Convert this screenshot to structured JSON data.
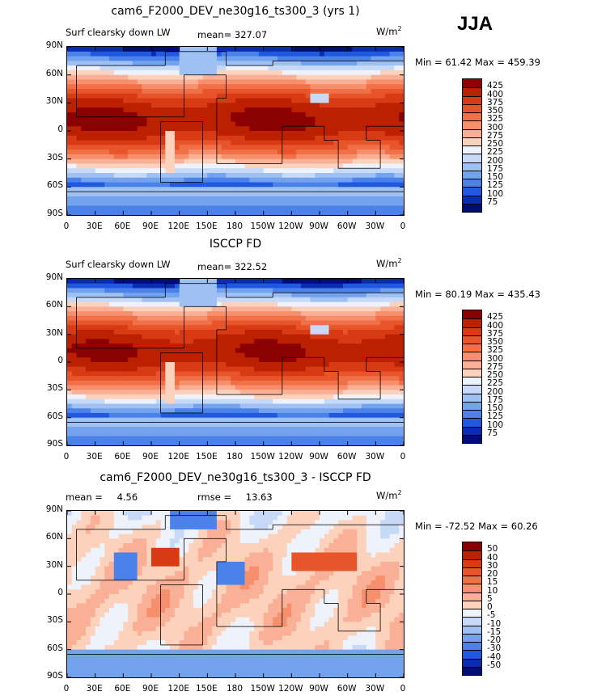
{
  "season": "JJA",
  "panels": [
    {
      "title": "cam6_F2000_DEV_ne30g16_ts300_3 (yrs 1)",
      "left_label": "Surf clearsky down LW",
      "mean_label": "mean=",
      "mean_value": "327.07",
      "rmse_label": "",
      "rmse_value": "",
      "units": "W/m",
      "units_sup": "2",
      "minmax": "Min =  61.42 Max = 459.39",
      "levels": [
        "425",
        "400",
        "375",
        "350",
        "325",
        "300",
        "275",
        "250",
        "225",
        "200",
        "175",
        "150",
        "125",
        "100",
        "75"
      ],
      "colors": [
        "#8b0000",
        "#bb2000",
        "#d83a14",
        "#e8552a",
        "#f07048",
        "#f68f6c",
        "#fab096",
        "#fdd2bc",
        "#eef3fb",
        "#c6d9f6",
        "#9ec0f2",
        "#74a3ee",
        "#4a82ea",
        "#2058e0",
        "#0a2cb0",
        "#000c78"
      ]
    },
    {
      "title": "ISCCP FD",
      "left_label": "Surf clearsky down LW",
      "mean_label": "mean=",
      "mean_value": "322.52",
      "rmse_label": "",
      "rmse_value": "",
      "units": "W/m",
      "units_sup": "2",
      "minmax": "Min =  80.19 Max = 435.43",
      "levels": [
        "425",
        "400",
        "375",
        "350",
        "325",
        "300",
        "275",
        "250",
        "225",
        "200",
        "175",
        "150",
        "125",
        "100",
        "75"
      ],
      "colors": [
        "#8b0000",
        "#bb2000",
        "#d83a14",
        "#e8552a",
        "#f07048",
        "#f68f6c",
        "#fab096",
        "#fdd2bc",
        "#eef3fb",
        "#c6d9f6",
        "#9ec0f2",
        "#74a3ee",
        "#4a82ea",
        "#2058e0",
        "#0a2cb0",
        "#000c78"
      ]
    },
    {
      "title": "cam6_F2000_DEV_ne30g16_ts300_3 - ISCCP FD",
      "left_label": "",
      "mean_label": "mean =",
      "mean_value": "4.56",
      "rmse_label": "rmse =",
      "rmse_value": "13.63",
      "units": "W/m",
      "units_sup": "2",
      "minmax": "Min = -72.52 Max =  60.26",
      "levels": [
        "50",
        "40",
        "30",
        "20",
        "15",
        "10",
        "5",
        "0",
        "-5",
        "-10",
        "-15",
        "-20",
        "-30",
        "-40",
        "-50"
      ],
      "colors": [
        "#8b0000",
        "#bb2000",
        "#d83a14",
        "#e8552a",
        "#f07048",
        "#f68f6c",
        "#fab096",
        "#fdd2bc",
        "#eef3fb",
        "#c6d9f6",
        "#9ec0f2",
        "#74a3ee",
        "#4a82ea",
        "#2058e0",
        "#0a2cb0",
        "#000c78"
      ]
    }
  ],
  "lat_ticks": [
    "90N",
    "60N",
    "30N",
    "0",
    "30S",
    "60S",
    "90S"
  ],
  "lon_ticks": [
    "0",
    "30E",
    "60E",
    "90E",
    "120E",
    "150E",
    "180",
    "150W",
    "120W",
    "90W",
    "60W",
    "30W",
    "0"
  ]
}
